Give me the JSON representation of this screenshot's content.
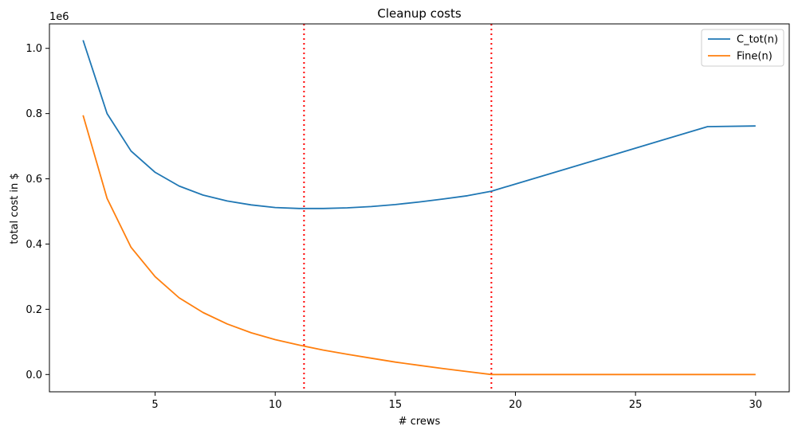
{
  "chart_data": {
    "type": "line",
    "title": "Cleanup costs",
    "xlabel": "# crews",
    "ylabel": "total cost in $",
    "y_offset_label": "1e6",
    "xlim": [
      0.6,
      31.4
    ],
    "ylim": [
      -0.053,
      1.075
    ],
    "xticks": [
      5,
      10,
      15,
      20,
      25,
      30
    ],
    "yticks": [
      0.0,
      0.2,
      0.4,
      0.6,
      0.8,
      1.0
    ],
    "ytick_labels": [
      "0.0",
      "0.2",
      "0.4",
      "0.6",
      "0.8",
      "1.0"
    ],
    "grid": false,
    "legend_position": "top-right",
    "vlines": [
      {
        "x": 11.2,
        "color": "#ff0000",
        "style": "dotted"
      },
      {
        "x": 19.0,
        "color": "#ff0000",
        "style": "dotted"
      }
    ],
    "series": [
      {
        "name": "C_tot(n)",
        "color": "#1f77b4",
        "x": [
          2,
          3,
          4,
          5,
          6,
          7,
          8,
          9,
          10,
          11,
          12,
          13,
          14,
          15,
          16,
          17,
          18,
          19,
          20,
          22,
          24,
          26,
          28,
          30
        ],
        "y": [
          1.025,
          0.8,
          0.685,
          0.62,
          0.578,
          0.55,
          0.532,
          0.52,
          0.512,
          0.509,
          0.509,
          0.511,
          0.515,
          0.521,
          0.529,
          0.538,
          0.548,
          0.562,
          0.584,
          0.628,
          0.672,
          0.716,
          0.76,
          0.762
        ]
      },
      {
        "name": "Fine(n)",
        "color": "#ff7f0e",
        "x": [
          2,
          3,
          4,
          5,
          6,
          7,
          8,
          9,
          10,
          11,
          12,
          13,
          14,
          15,
          16,
          17,
          18,
          19,
          20,
          22,
          24,
          26,
          28,
          30
        ],
        "y": [
          0.795,
          0.54,
          0.39,
          0.3,
          0.235,
          0.19,
          0.155,
          0.128,
          0.107,
          0.09,
          0.075,
          0.062,
          0.05,
          0.038,
          0.028,
          0.018,
          0.009,
          0.0,
          0.0,
          0.0,
          0.0,
          0.0,
          0.0,
          0.0
        ]
      }
    ]
  }
}
